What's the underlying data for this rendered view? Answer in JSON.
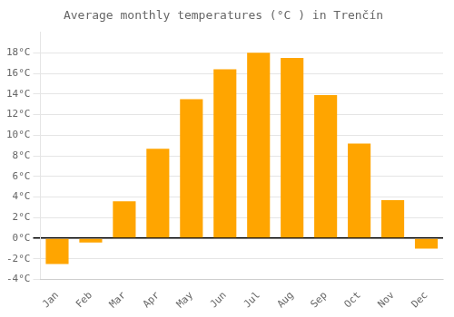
{
  "chart_data": {
    "type": "bar",
    "title": "Average monthly temperatures (°C ) in Trenčín",
    "categories": [
      "Jan",
      "Feb",
      "Mar",
      "Apr",
      "May",
      "Jun",
      "Jul",
      "Aug",
      "Sep",
      "Oct",
      "Nov",
      "Dec"
    ],
    "values": [
      -2.5,
      -0.4,
      3.6,
      8.7,
      13.5,
      16.4,
      18.0,
      17.5,
      13.9,
      9.2,
      3.7,
      -1.0
    ],
    "color": "#FFA500",
    "ylim": [
      -4,
      20
    ],
    "yticks": [
      {
        "value": -4,
        "label": "-4°C"
      },
      {
        "value": -2,
        "label": "-2°C"
      },
      {
        "value": 0,
        "label": "0°C"
      },
      {
        "value": 2,
        "label": "2°C"
      },
      {
        "value": 4,
        "label": "4°C"
      },
      {
        "value": 6,
        "label": "6°C"
      },
      {
        "value": 8,
        "label": "8°C"
      },
      {
        "value": 10,
        "label": "10°C"
      },
      {
        "value": 12,
        "label": "12°C"
      },
      {
        "value": 14,
        "label": "14°C"
      },
      {
        "value": 16,
        "label": "16°C"
      },
      {
        "value": 18,
        "label": "18°C"
      }
    ],
    "grid": true
  }
}
